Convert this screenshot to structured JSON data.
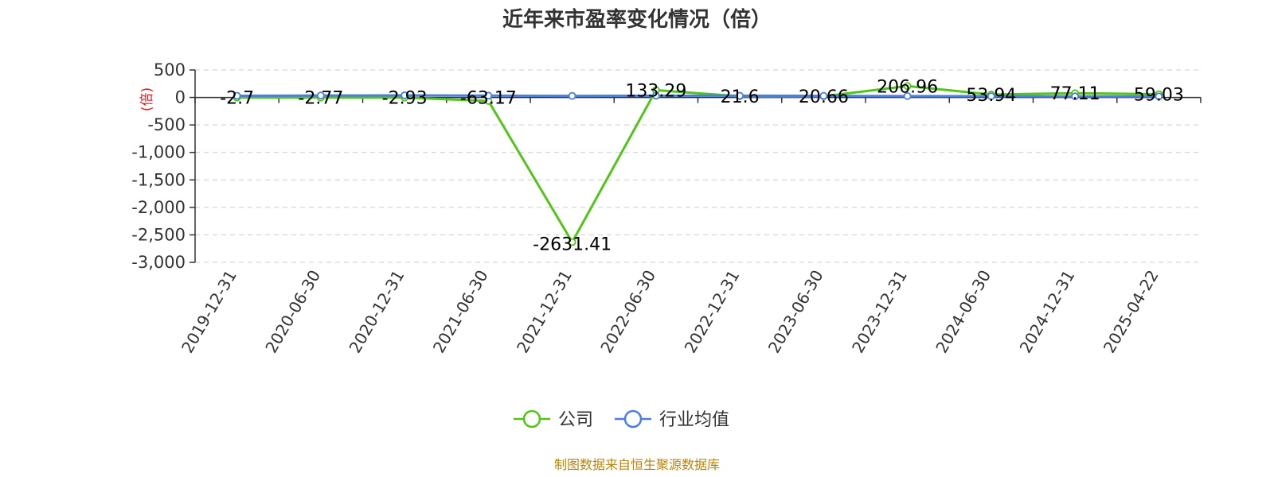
{
  "chart_data": {
    "type": "line",
    "title": "近年来市盈率变化情况（倍）",
    "ylabel": "(倍)",
    "xlabel": "",
    "categories": [
      "2019-12-31",
      "2020-06-30",
      "2020-12-31",
      "2021-06-30",
      "2021-12-31",
      "2022-06-30",
      "2022-12-31",
      "2023-06-30",
      "2023-12-31",
      "2024-06-30",
      "2024-12-31",
      "2025-04-22"
    ],
    "series": [
      {
        "name": "公司",
        "color": "#52c41a",
        "values": [
          -2.7,
          -2.77,
          -2.93,
          -63.17,
          -2631.41,
          133.29,
          21.6,
          20.66,
          206.96,
          53.94,
          77.11,
          59.03
        ],
        "labels": [
          "-2.7",
          "-2.77",
          "-2.93",
          "-63.17",
          "-2631.41",
          "133.29",
          "21.6",
          "20.66",
          "206.96",
          "53.94",
          "77.11",
          "59.03"
        ]
      },
      {
        "name": "行业均值",
        "color": "#4a7fdc",
        "values": [
          30,
          35,
          38,
          33,
          28,
          32,
          31,
          29,
          25,
          22,
          20,
          19
        ]
      }
    ],
    "ylim": [
      -3000,
      500
    ],
    "yticks": [
      500,
      0,
      -500,
      -1000,
      -1500,
      -2000,
      -2500,
      -3000
    ],
    "ytick_labels": [
      "500",
      "0",
      "-500",
      "-1,000",
      "-1,500",
      "-2,000",
      "-2,500",
      "-3,000"
    ],
    "grid": true,
    "legend_position": "bottom"
  },
  "source_text": "制图数据来自恒生聚源数据库"
}
